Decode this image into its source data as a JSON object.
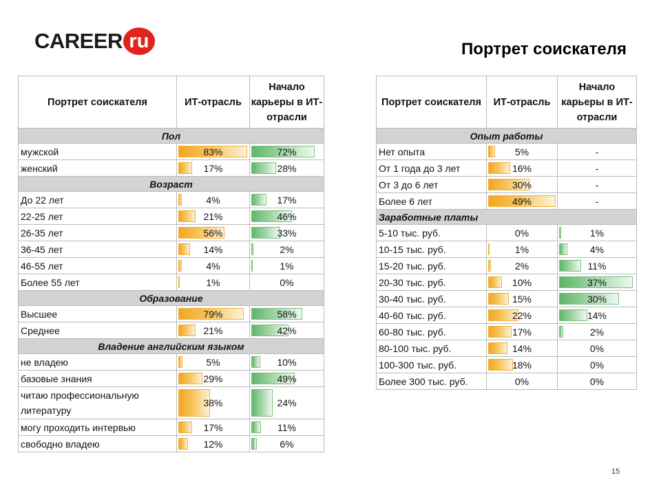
{
  "logo": {
    "text_left": "CAREER",
    "text_circle": "ru"
  },
  "page_title": "Портрет соискателя",
  "page_number": "15",
  "colors": {
    "it_bar": "#f2a623",
    "career_bar": "#5fb56a",
    "section_bg": "#d3d3d3",
    "logo_red": "#e0231c"
  },
  "left_table": {
    "headers": {
      "portrait": "Портрет соискателя",
      "it": "ИТ-отрасль",
      "career": "Начало карьеры в ИТ-отрасли"
    },
    "sections": [
      {
        "title": "Пол",
        "rows": [
          {
            "label": "мужской",
            "it": "83%",
            "career": "72%",
            "it_value": 83,
            "career_value": 72
          },
          {
            "label": "женский",
            "it": "17%",
            "career": "28%",
            "it_value": 17,
            "career_value": 28
          }
        ]
      },
      {
        "title": "Возраст",
        "rows": [
          {
            "label": "До 22 лет",
            "it": "4%",
            "career": "17%",
            "it_value": 4,
            "career_value": 17
          },
          {
            "label": "22-25 лет",
            "it": "21%",
            "career": "46%",
            "it_value": 21,
            "career_value": 46
          },
          {
            "label": "26-35 лет",
            "it": "56%",
            "career": "33%",
            "it_value": 56,
            "career_value": 33
          },
          {
            "label": "36-45 лет",
            "it": "14%",
            "career": "2%",
            "it_value": 14,
            "career_value": 2
          },
          {
            "label": "46-55 лет",
            "it": "4%",
            "career": "1%",
            "it_value": 4,
            "career_value": 1
          },
          {
            "label": "Более 55 лет",
            "it": "1%",
            "career": "0%",
            "it_value": 1,
            "career_value": 0
          }
        ]
      },
      {
        "title": "Образование",
        "rows": [
          {
            "label": "Высшее",
            "it": "79%",
            "career": "58%",
            "it_value": 79,
            "career_value": 58
          },
          {
            "label": "Среднее",
            "it": "21%",
            "career": "42%",
            "it_value": 21,
            "career_value": 42
          }
        ]
      },
      {
        "title": "Владение английским языком",
        "rows": [
          {
            "label": "не владею",
            "it": "5%",
            "career": "10%",
            "it_value": 5,
            "career_value": 10
          },
          {
            "label": "базовые знания",
            "it": "29%",
            "career": "49%",
            "it_value": 29,
            "career_value": 49
          },
          {
            "label": "читаю профессиональную литературу",
            "it": "38%",
            "career": "24%",
            "it_value": 38,
            "career_value": 24,
            "tall": true
          },
          {
            "label": "могу проходить интервью",
            "it": "17%",
            "career": "11%",
            "it_value": 17,
            "career_value": 11
          },
          {
            "label": "свободно владею",
            "it": "12%",
            "career": "6%",
            "it_value": 12,
            "career_value": 6
          }
        ]
      }
    ]
  },
  "right_table": {
    "headers": {
      "portrait": "Портрет соискателя",
      "it": "ИТ-отрасль",
      "career": "Начало карьеры в ИТ-отрасли"
    },
    "sections": [
      {
        "title": "Опыт работы",
        "rows": [
          {
            "label": "Нет опыта",
            "it": "5%",
            "career": "-",
            "it_value": 5,
            "career_value": 0
          },
          {
            "label": "От 1 года до 3 лет",
            "it": "16%",
            "career": "-",
            "it_value": 16,
            "career_value": 0
          },
          {
            "label": "От 3 до 6 лет",
            "it": "30%",
            "career": "-",
            "it_value": 30,
            "career_value": 0
          },
          {
            "label": "Более 6 лет",
            "it": "49%",
            "career": "-",
            "it_value": 49,
            "career_value": 0
          }
        ]
      },
      {
        "title": "Заработные платы",
        "rows": [
          {
            "label": "5-10 тыс. руб.",
            "it": "0%",
            "career": "1%",
            "it_value": 0,
            "career_value": 1
          },
          {
            "label": "10-15 тыс. руб.",
            "it": "1%",
            "career": "4%",
            "it_value": 1,
            "career_value": 4
          },
          {
            "label": "15-20 тыс. руб.",
            "it": "2%",
            "career": "11%",
            "it_value": 2,
            "career_value": 11
          },
          {
            "label": "20-30 тыс. руб.",
            "it": "10%",
            "career": "37%",
            "it_value": 10,
            "career_value": 37
          },
          {
            "label": "30-40 тыс. руб.",
            "it": "15%",
            "career": "30%",
            "it_value": 15,
            "career_value": 30
          },
          {
            "label": "40-60 тыс. руб.",
            "it": "22%",
            "career": "14%",
            "it_value": 22,
            "career_value": 14
          },
          {
            "label": "60-80 тыс. руб.",
            "it": "17%",
            "career": "2%",
            "it_value": 17,
            "career_value": 2
          },
          {
            "label": "80-100 тыс. руб.",
            "it": "14%",
            "career": "0%",
            "it_value": 14,
            "career_value": 0
          },
          {
            "label": "100-300 тыс. руб.",
            "it": "18%",
            "career": "0%",
            "it_value": 18,
            "career_value": 0
          },
          {
            "label": "Более 300 тыс. руб.",
            "it": "0%",
            "career": "0%",
            "it_value": 0,
            "career_value": 0
          }
        ]
      }
    ]
  }
}
